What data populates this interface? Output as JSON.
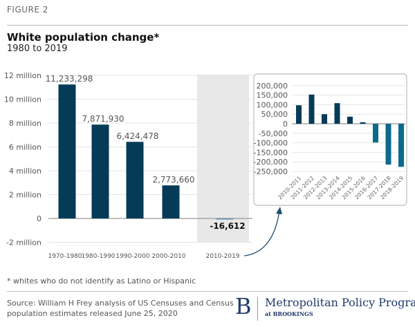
{
  "header": {
    "figure_label": "FIGURE 2",
    "title": "White population change*",
    "subtitle": "1980 to 2019"
  },
  "chart_data": [
    {
      "type": "bar",
      "title": "White population change*",
      "subtitle": "1980 to 2019",
      "categories": [
        "1970-1980",
        "1980-1990",
        "1990-2000",
        "2000-2010",
        "2010-2019"
      ],
      "values": [
        11233298,
        7871930,
        6424478,
        2773660,
        -16612
      ],
      "data_labels": [
        "11,233,298",
        "7,871,930",
        "6,424,478",
        "2,773,660",
        "-16,612"
      ],
      "ylim": [
        -2000000,
        12000000
      ],
      "yticks": [
        {
          "v": 12000000,
          "label": "12 million"
        },
        {
          "v": 10000000,
          "label": "10 million"
        },
        {
          "v": 8000000,
          "label": "8 million"
        },
        {
          "v": 6000000,
          "label": "6 million"
        },
        {
          "v": 4000000,
          "label": "4 million"
        },
        {
          "v": 2000000,
          "label": "2 million"
        },
        {
          "v": 0,
          "label": "0"
        },
        {
          "v": -2000000,
          "label": "-2 million"
        }
      ],
      "grid": true,
      "highlighted_category": "2010-2019",
      "bar_color": "#053b57"
    },
    {
      "type": "bar",
      "inset": true,
      "categories": [
        "2010-2011",
        "2011-2012",
        "2012-2013",
        "2013-2014",
        "2014-2015",
        "2015-2016",
        "2016-2017",
        "2017-2018",
        "2018-2019"
      ],
      "values": [
        97000,
        153000,
        50000,
        108000,
        37000,
        8000,
        -98000,
        -214000,
        -226000
      ],
      "ylim": [
        -250000,
        200000
      ],
      "yticks": [
        {
          "v": 200000,
          "label": "200,000"
        },
        {
          "v": 150000,
          "label": "150,000"
        },
        {
          "v": 100000,
          "label": "100,000"
        },
        {
          "v": 50000,
          "label": "50,000"
        },
        {
          "v": 0,
          "label": "0"
        },
        {
          "v": -50000,
          "label": "-50,000"
        },
        {
          "v": -100000,
          "label": "-100,000"
        },
        {
          "v": -150000,
          "label": "-150,000"
        },
        {
          "v": -200000,
          "label": "-200,000"
        },
        {
          "v": -250000,
          "label": "-250,000"
        }
      ],
      "grid": true,
      "positive_color": "#053b57",
      "negative_color": "#0b6a8c"
    }
  ],
  "footer": {
    "note": "* whites who do not identify as Latino or Hispanic",
    "source_line1": "Source: William H Frey analysis of US Censuses and Census",
    "source_line2": "population estimates released June 25, 2020",
    "logo_letter": "B",
    "program": "Metropolitan Policy Program",
    "at_brookings": "at BROOKINGS"
  }
}
